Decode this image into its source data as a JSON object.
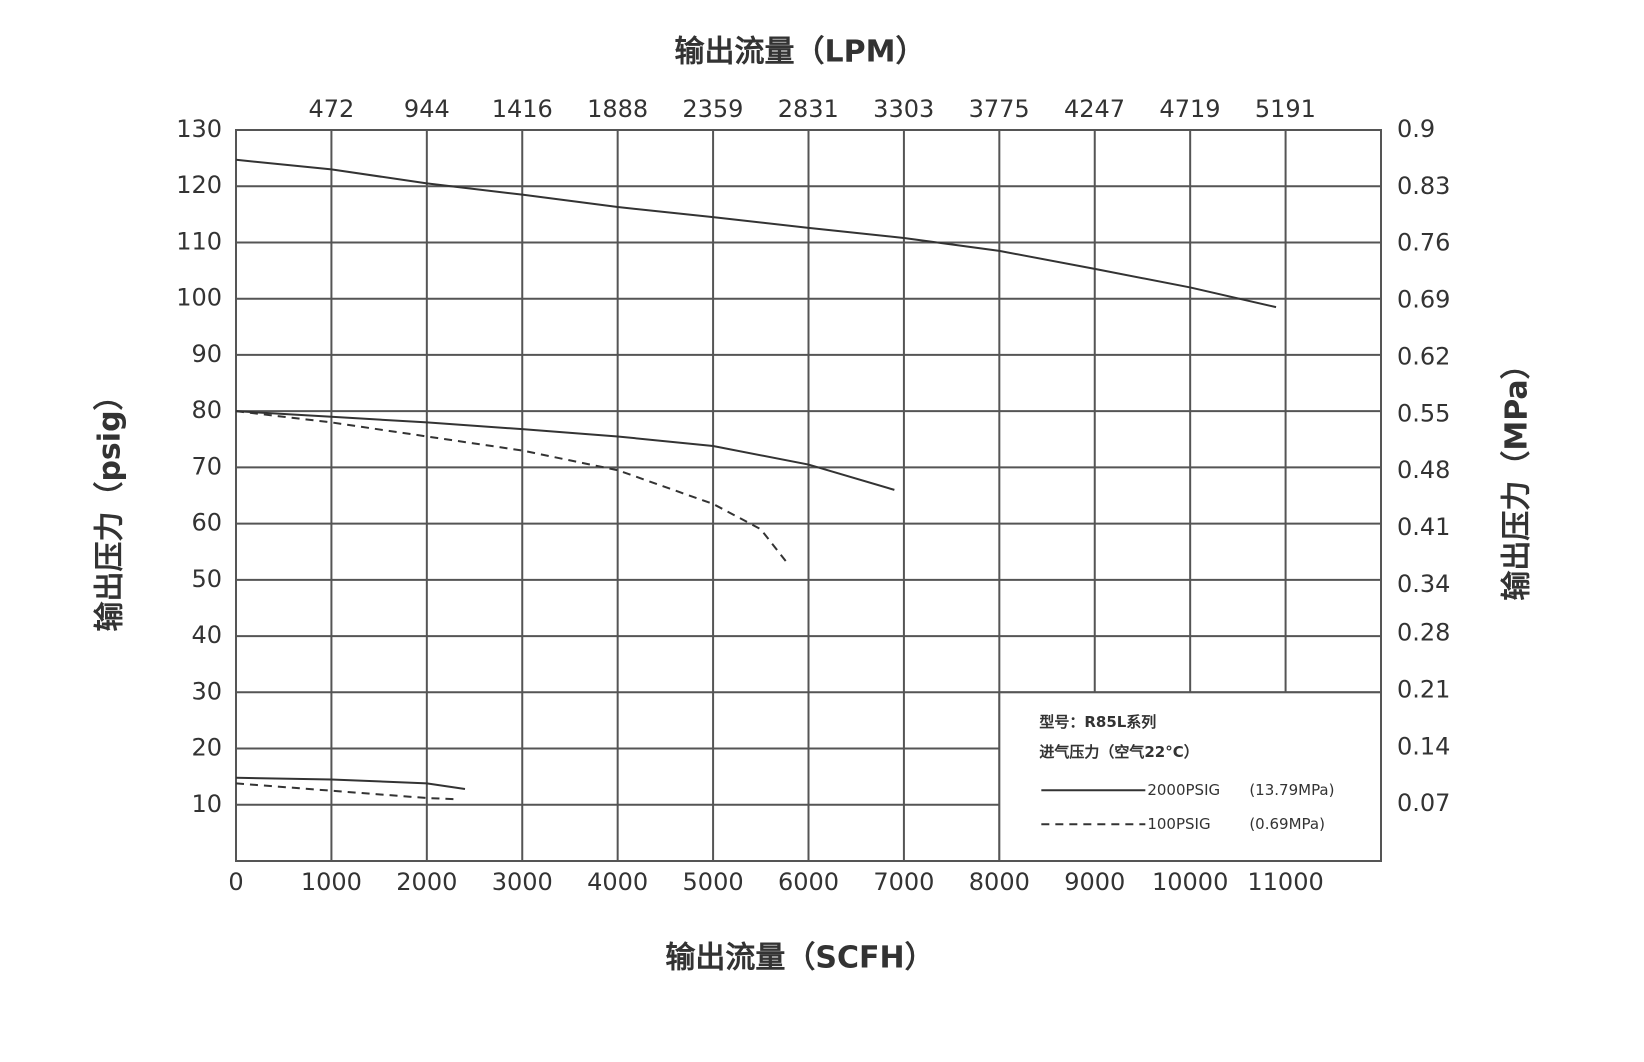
{
  "chart_data": {
    "type": "line",
    "title": "输出流量（LPM）",
    "xlabel": "输出流量（SCFH）",
    "ylabel": "输出压力（psig）",
    "y2label": "输出压力（MPa）",
    "xlim": [
      0,
      12000
    ],
    "xticks": [
      0,
      1000,
      2000,
      3000,
      4000,
      5000,
      6000,
      7000,
      8000,
      9000,
      10000,
      11000
    ],
    "x2lim": [
      0,
      5664
    ],
    "x2ticks": [
      472,
      944,
      1416,
      1888,
      2359,
      2831,
      3303,
      3775,
      4247,
      4719,
      5191
    ],
    "ylim": [
      0,
      130
    ],
    "yticks": [
      10,
      20,
      30,
      40,
      50,
      60,
      70,
      80,
      90,
      100,
      110,
      120,
      130
    ],
    "y2lim": [
      0,
      0.9
    ],
    "y2ticks": [
      0.07,
      0.14,
      0.21,
      0.28,
      0.34,
      0.41,
      0.48,
      0.55,
      0.62,
      0.69,
      0.76,
      0.83,
      0.9
    ],
    "grid": true,
    "series": [
      {
        "style": "solid",
        "color": "#333333",
        "x": [
          0,
          1000,
          2000,
          3000,
          4000,
          5000,
          6000,
          7000,
          8000,
          9000,
          10000,
          10900
        ],
        "values": [
          124.7,
          123,
          120.5,
          118.5,
          116.3,
          114.5,
          112.6,
          110.8,
          108.5,
          105.3,
          102,
          98.5
        ]
      },
      {
        "style": "solid",
        "color": "#333333",
        "x": [
          0,
          1000,
          2000,
          3000,
          4000,
          5000,
          6000,
          6900
        ],
        "values": [
          80,
          79,
          78,
          76.8,
          75.5,
          73.8,
          70.5,
          66
        ]
      },
      {
        "style": "dashed",
        "color": "#333333",
        "x": [
          0,
          1000,
          2000,
          3000,
          4000,
          5000,
          5500,
          5800
        ],
        "values": [
          80,
          78,
          75.5,
          73,
          69.5,
          63.5,
          59,
          52.5
        ]
      },
      {
        "style": "solid",
        "color": "#333333",
        "x": [
          0,
          1000,
          2000,
          2400
        ],
        "values": [
          14.8,
          14.5,
          13.8,
          12.8
        ]
      },
      {
        "style": "dashed",
        "color": "#333333",
        "x": [
          0,
          1000,
          2000,
          2300
        ],
        "values": [
          13.8,
          12.5,
          11.2,
          11
        ]
      }
    ],
    "legend": {
      "title": "型号：R85L系列",
      "subtitle": "进气压力（空气22°C）",
      "entries": [
        {
          "label": "2000PSIG",
          "note": "(13.79MPa)",
          "style": "solid"
        },
        {
          "label": "100PSIG",
          "note": "(0.69MPa)",
          "style": "dashed"
        }
      ]
    }
  }
}
